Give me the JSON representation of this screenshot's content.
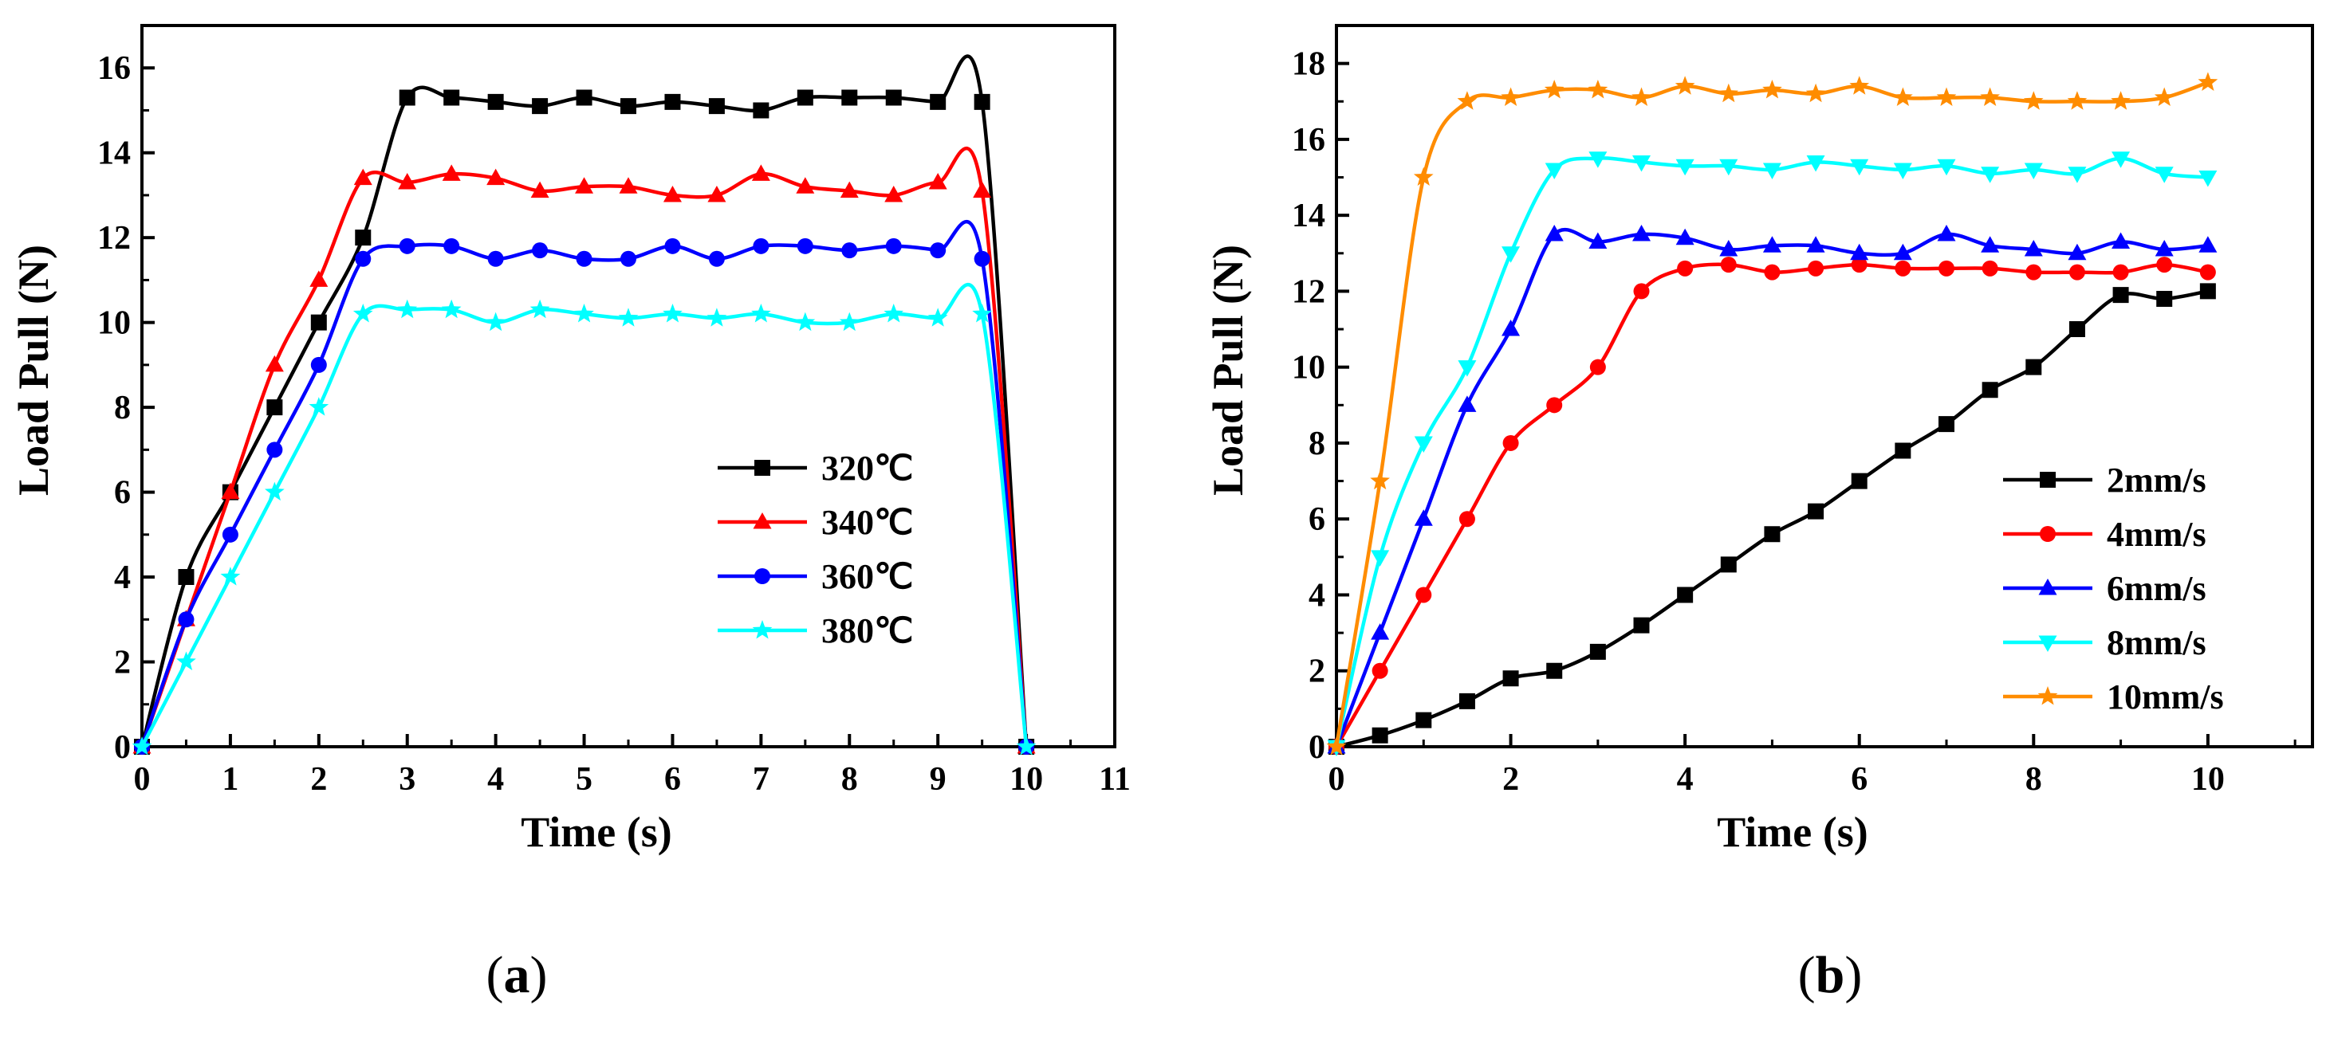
{
  "chart_data": [
    {
      "type": "line",
      "panel_label": {
        "open": "(",
        "letter": "a",
        "close": ")"
      },
      "xlabel": "Time (s)",
      "ylabel": "Load Pull (N)",
      "xlim": [
        0,
        11
      ],
      "ylim": [
        0,
        17
      ],
      "xticks": [
        0,
        1,
        2,
        3,
        4,
        5,
        6,
        7,
        8,
        9,
        10,
        11
      ],
      "yticks": [
        0,
        2,
        4,
        6,
        8,
        10,
        12,
        14,
        16
      ],
      "grid": false,
      "legend_position": "center-right",
      "series": [
        {
          "name": "320℃",
          "color": "#000000",
          "marker": "square",
          "x": [
            0,
            0.5,
            1,
            1.5,
            2,
            2.5,
            3,
            3.5,
            4,
            4.5,
            5,
            5.5,
            6,
            6.5,
            7,
            7.5,
            8,
            8.5,
            9,
            9.5,
            10
          ],
          "y": [
            0,
            4,
            6,
            8,
            10,
            12,
            15.3,
            15.3,
            15.2,
            15.1,
            15.3,
            15.1,
            15.2,
            15.1,
            15.0,
            15.3,
            15.3,
            15.3,
            15.2,
            15.2,
            0
          ]
        },
        {
          "name": "340℃",
          "color": "#ff0000",
          "marker": "triangle",
          "x": [
            0,
            0.5,
            1,
            1.5,
            2,
            2.5,
            3,
            3.5,
            4,
            4.5,
            5,
            5.5,
            6,
            6.5,
            7,
            7.5,
            8,
            8.5,
            9,
            9.5,
            10
          ],
          "y": [
            0,
            3,
            6,
            9,
            11,
            13.4,
            13.3,
            13.5,
            13.4,
            13.1,
            13.2,
            13.2,
            13.0,
            13.0,
            13.5,
            13.2,
            13.1,
            13.0,
            13.3,
            13.1,
            0
          ]
        },
        {
          "name": "360℃",
          "color": "#0000ff",
          "marker": "circle",
          "x": [
            0,
            0.5,
            1,
            1.5,
            2,
            2.5,
            3,
            3.5,
            4,
            4.5,
            5,
            5.5,
            6,
            6.5,
            7,
            7.5,
            8,
            8.5,
            9,
            9.5,
            10
          ],
          "y": [
            0,
            3,
            5,
            7,
            9,
            11.5,
            11.8,
            11.8,
            11.5,
            11.7,
            11.5,
            11.5,
            11.8,
            11.5,
            11.8,
            11.8,
            11.7,
            11.8,
            11.7,
            11.5,
            0
          ]
        },
        {
          "name": "380℃",
          "color": "#00ffff",
          "marker": "star",
          "x": [
            0,
            0.5,
            1,
            1.5,
            2,
            2.5,
            3,
            3.5,
            4,
            4.5,
            5,
            5.5,
            6,
            6.5,
            7,
            7.5,
            8,
            8.5,
            9,
            9.5,
            10
          ],
          "y": [
            0,
            2,
            4,
            6,
            8,
            10.2,
            10.3,
            10.3,
            10.0,
            10.3,
            10.2,
            10.1,
            10.2,
            10.1,
            10.2,
            10.0,
            10.0,
            10.2,
            10.1,
            10.2,
            0
          ]
        }
      ]
    },
    {
      "type": "line",
      "panel_label": {
        "open": "(",
        "letter": "b",
        "close": ")"
      },
      "xlabel": "Time (s)",
      "ylabel": "Load Pull (N)",
      "xlim": [
        0,
        11.2
      ],
      "ylim": [
        0,
        19
      ],
      "xticks": [
        0,
        2,
        4,
        6,
        8,
        10
      ],
      "yticks": [
        0,
        2,
        4,
        6,
        8,
        10,
        12,
        14,
        16,
        18
      ],
      "grid": false,
      "legend_position": "bottom-right",
      "series": [
        {
          "name": "2mm/s",
          "color": "#000000",
          "marker": "square",
          "x": [
            0,
            0.5,
            1,
            1.5,
            2,
            2.5,
            3,
            3.5,
            4,
            4.5,
            5,
            5.5,
            6,
            6.5,
            7,
            7.5,
            8,
            8.5,
            9,
            9.5,
            10
          ],
          "y": [
            0,
            0.3,
            0.7,
            1.2,
            1.8,
            2.0,
            2.5,
            3.2,
            4.0,
            4.8,
            5.6,
            6.2,
            7.0,
            7.8,
            8.5,
            9.4,
            10.0,
            11.0,
            11.9,
            11.8,
            12.0
          ]
        },
        {
          "name": "4mm/s",
          "color": "#ff0000",
          "marker": "circle",
          "x": [
            0,
            0.5,
            1,
            1.5,
            2,
            2.5,
            3,
            3.5,
            4,
            4.5,
            5,
            5.5,
            6,
            6.5,
            7,
            7.5,
            8,
            8.5,
            9,
            9.5,
            10
          ],
          "y": [
            0,
            2,
            4,
            6,
            8,
            9,
            10,
            12,
            12.6,
            12.7,
            12.5,
            12.6,
            12.7,
            12.6,
            12.6,
            12.6,
            12.5,
            12.5,
            12.5,
            12.7,
            12.5
          ]
        },
        {
          "name": "6mm/s",
          "color": "#0000ff",
          "marker": "triangle",
          "x": [
            0,
            0.5,
            1,
            1.5,
            2,
            2.5,
            3,
            3.5,
            4,
            4.5,
            5,
            5.5,
            6,
            6.5,
            7,
            7.5,
            8,
            8.5,
            9,
            9.5,
            10
          ],
          "y": [
            0,
            3,
            6,
            9,
            11,
            13.5,
            13.3,
            13.5,
            13.4,
            13.1,
            13.2,
            13.2,
            13.0,
            13.0,
            13.5,
            13.2,
            13.1,
            13.0,
            13.3,
            13.1,
            13.2
          ]
        },
        {
          "name": "8mm/s",
          "color": "#00ffff",
          "marker": "triangle-down",
          "x": [
            0,
            0.5,
            1,
            1.5,
            2,
            2.5,
            3,
            3.5,
            4,
            4.5,
            5,
            5.5,
            6,
            6.5,
            7,
            7.5,
            8,
            8.5,
            9,
            9.5,
            10
          ],
          "y": [
            0,
            5,
            8,
            10,
            13,
            15.2,
            15.5,
            15.4,
            15.3,
            15.3,
            15.2,
            15.4,
            15.3,
            15.2,
            15.3,
            15.1,
            15.2,
            15.1,
            15.5,
            15.1,
            15.0
          ]
        },
        {
          "name": "10mm/s",
          "color": "#ff8c00",
          "marker": "star",
          "x": [
            0,
            0.5,
            1,
            1.5,
            2,
            2.5,
            3,
            3.5,
            4,
            4.5,
            5,
            5.5,
            6,
            6.5,
            7,
            7.5,
            8,
            8.5,
            9,
            9.5,
            10
          ],
          "y": [
            0,
            7,
            15,
            17.0,
            17.1,
            17.3,
            17.3,
            17.1,
            17.4,
            17.2,
            17.3,
            17.2,
            17.4,
            17.1,
            17.1,
            17.1,
            17.0,
            17.0,
            17.0,
            17.1,
            17.5
          ]
        }
      ]
    }
  ]
}
